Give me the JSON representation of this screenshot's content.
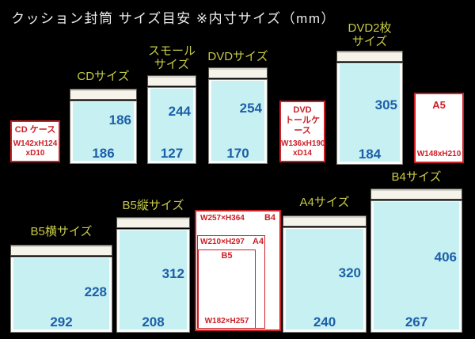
{
  "title": "クッション封筒  サイズ目安  ※内寸サイズ（mm）",
  "colors": {
    "background": "#000000",
    "label_yellow": "#c6ca45",
    "number_blue": "#1d5fa8",
    "reference_red": "#cc1f26",
    "envelope_cyan": "#c6f0f2",
    "flap_cream": "#f6f3ea"
  },
  "envelopes": {
    "cd": {
      "label": "CDサイズ",
      "inner_height_mm": "186",
      "inner_width_mm": "186"
    },
    "small": {
      "label": "スモール\nサイズ",
      "inner_height_mm": "244",
      "inner_width_mm": "127"
    },
    "dvd": {
      "label": "DVDサイズ",
      "inner_height_mm": "254",
      "inner_width_mm": "170"
    },
    "dvd2": {
      "label": "DVD2枚\nサイズ",
      "inner_height_mm": "305",
      "inner_width_mm": "184"
    },
    "b5_yoko": {
      "label": "B5横サイズ",
      "inner_height_mm": "228",
      "inner_width_mm": "292"
    },
    "b5_tate": {
      "label": "B5縦サイズ",
      "inner_height_mm": "312",
      "inner_width_mm": "208"
    },
    "a4": {
      "label": "A4サイズ",
      "inner_height_mm": "320",
      "inner_width_mm": "240"
    },
    "b4": {
      "label": "B4サイズ",
      "inner_height_mm": "406",
      "inner_width_mm": "267"
    }
  },
  "references": {
    "cd_case": {
      "name": "CD ケース",
      "size": "W142xH124\nxD10"
    },
    "dvd_tall_case": {
      "name": "DVD\nトールケース",
      "size": "W136xH190\nxD14"
    },
    "a5": {
      "name": "A5",
      "size": "W148xH210"
    }
  },
  "nested_paper": {
    "b4": {
      "label": "B4",
      "size": "W257×H364"
    },
    "a4": {
      "label": "A4",
      "size": "W210×H297"
    },
    "b5": {
      "label": "B5",
      "size": "W182×H257"
    }
  }
}
